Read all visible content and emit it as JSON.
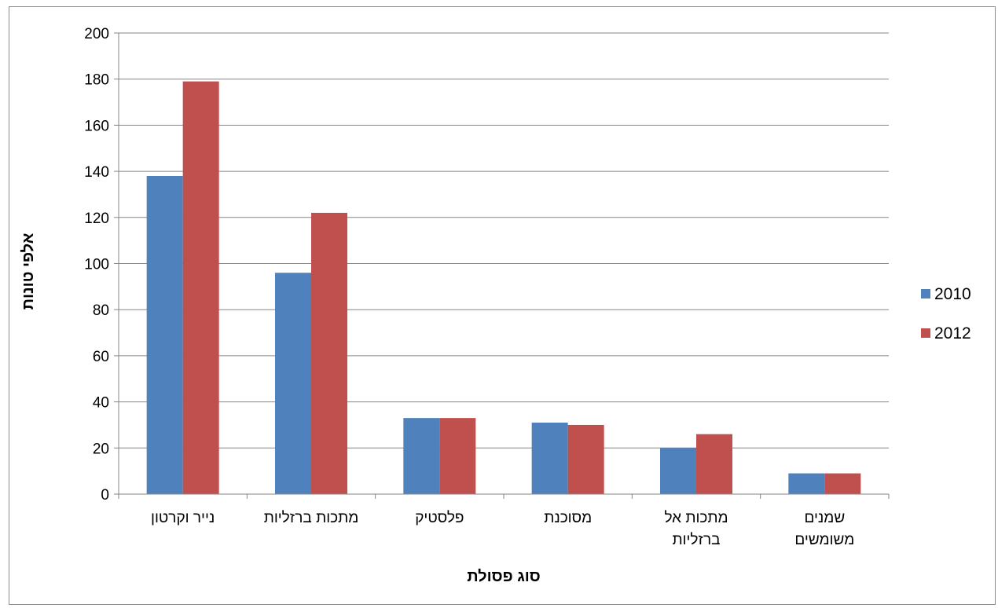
{
  "chart_data": {
    "type": "bar",
    "title": "",
    "xlabel": "סוג פסולת",
    "ylabel": "אלפי טונות",
    "ylim": [
      0,
      200
    ],
    "yticks": [
      0,
      20,
      40,
      60,
      80,
      100,
      120,
      140,
      160,
      180,
      200
    ],
    "grid": true,
    "legend_position": "right",
    "categories": [
      [
        "נייר וקרטון"
      ],
      [
        "מתכות ברזליות"
      ],
      [
        "פלסטיק"
      ],
      [
        "מסוכנת"
      ],
      [
        "מתכות אל",
        "ברזליות"
      ],
      [
        "שמנים",
        "משומשים"
      ]
    ],
    "series": [
      {
        "name": "2010",
        "color": "#4f81bd",
        "values": [
          138,
          96,
          33,
          31,
          20,
          9
        ]
      },
      {
        "name": "2012",
        "color": "#c0504d",
        "values": [
          179,
          122,
          33,
          30,
          26,
          9
        ]
      }
    ]
  }
}
